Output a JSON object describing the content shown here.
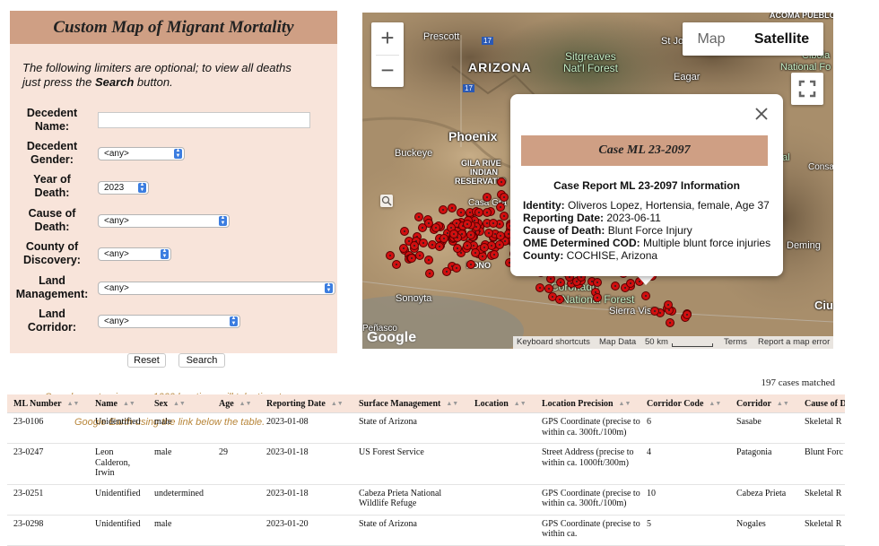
{
  "form": {
    "title": "Custom Map of Migrant Mortality",
    "intro_line1": "The following limiters are optional; to view all deaths",
    "intro_line2_pre": "just press the ",
    "intro_line2_bold": "Search",
    "intro_line2_post": " button.",
    "fields": {
      "name": {
        "label1": "Decedent",
        "label2": "Name:",
        "value": ""
      },
      "gender": {
        "label1": "Decedent",
        "label2": "Gender:",
        "value": "<any>"
      },
      "year": {
        "label1": "Year of",
        "label2": "Death:",
        "value": "2023"
      },
      "cause": {
        "label1": "Cause of",
        "label2": "Death:",
        "value": "<any>"
      },
      "county": {
        "label1": "County of",
        "label2": "Discovery:",
        "value": "<any>"
      },
      "land": {
        "label1": "Land",
        "label2": "Management:",
        "value": "<any>"
      },
      "corridor": {
        "label1": "Land",
        "label2": "Corridor:",
        "value": "<any>"
      }
    },
    "reset_label": "Reset",
    "search_label": "Search",
    "note_line1": "Searches returning over 1000 locations will take time to",
    "note_line2": "Google Earth using the link below the table."
  },
  "cases_matched": "197 cases matched",
  "map": {
    "type_map": "Map",
    "type_satellite": "Satellite",
    "zoom_in": "+",
    "zoom_out": "−",
    "fullscreen_icon": "fullscreen-icon",
    "places": {
      "prescott": "Prescott",
      "arizona": "ARIZONA",
      "sitgreaves": "Sitgreaves",
      "natl_forest": "Nat'l Forest",
      "st_jo": "St Jo",
      "eagar": "Eagar",
      "acoma": "ACOMA PUEBLO",
      "cibola": "Cibola",
      "national_forest": "National Fo",
      "phoenix": "Phoenix",
      "buckeye": "Buckeye",
      "gila1": "GILA RIVE",
      "gila2": "INDIAN",
      "gila3": "RESERVATIO",
      "casa_gra": "Casa Gra",
      "sonoyta": "Sonoyta",
      "hono": "HONO",
      "coronado": "Coronado",
      "nat_forest2": "National Forest",
      "sierra_vista": "Sierra Vista",
      "deming": "Deming",
      "al": "al",
      "consa": "Consa",
      "ciu": "Ciu",
      "penasco": "Peñasco",
      "route_17a": "17",
      "route_17b": "17"
    },
    "google": "Google",
    "footer_shortcuts": "Keyboard shortcuts",
    "footer_data": "Map Data",
    "footer_scale": "50 km",
    "footer_terms": "Terms",
    "footer_report": "Report a map error"
  },
  "popup": {
    "banner": "Case ML 23-2097",
    "subtitle": "Case Report ML 23-2097 Information",
    "identity_label": "Identity:",
    "identity": "Oliveros Lopez, Hortensia, female, Age 37",
    "date_label": "Reporting Date:",
    "date": "2023-06-11",
    "cause_label": "Cause of Death:",
    "cause": "Blunt Force Injury",
    "ome_label": "OME Determined COD:",
    "ome": "Multiple blunt force injuries",
    "county_label": "County:",
    "county": "COCHISE, Arizona"
  },
  "table": {
    "headers": [
      "ML Number",
      "Name",
      "Sex",
      "Age",
      "Reporting Date",
      "Surface Management",
      "Location",
      "Location Precision",
      "Corridor Code",
      "Corridor",
      "Cause of D"
    ],
    "rows": [
      [
        "23-0106",
        "Unidentified",
        "male",
        "",
        "2023-01-08",
        "State of Arizona",
        "",
        "GPS Coordinate (precise to within ca. 300ft./100m)",
        "6",
        "Sasabe",
        "Skeletal R"
      ],
      [
        "23-0247",
        "Leon Calderon, Irwin",
        "male",
        "29",
        "2023-01-18",
        "US Forest Service",
        "",
        "Street Address (precise to within ca. 1000ft/300m)",
        "4",
        "Patagonia",
        "Blunt Forc"
      ],
      [
        "23-0251",
        "Unidentified",
        "undetermined",
        "",
        "2023-01-18",
        "Cabeza Prieta National Wildlife Refuge",
        "",
        "GPS Coordinate (precise to within ca. 300ft./100m)",
        "10",
        "Cabeza Prieta",
        "Skeletal R"
      ],
      [
        "23-0298",
        "Unidentified",
        "male",
        "",
        "2023-01-20",
        "State of Arizona",
        "",
        "GPS Coordinate (precise to within ca.",
        "5",
        "Nogales",
        "Skeletal R"
      ]
    ]
  }
}
